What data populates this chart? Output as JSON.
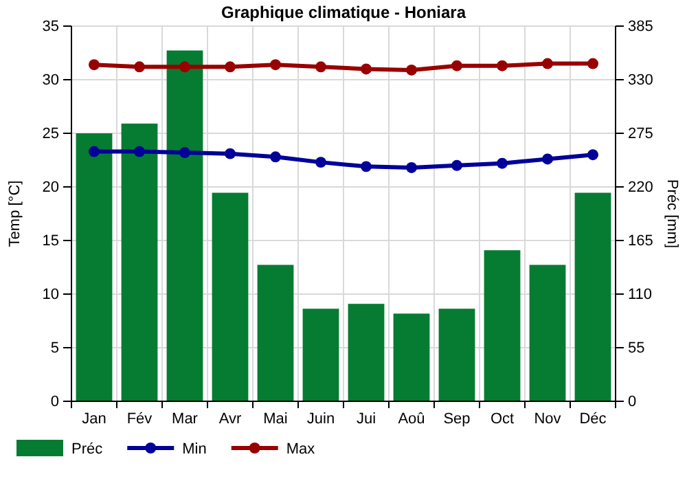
{
  "chart_data": {
    "type": "bar",
    "title": "Graphique climatique - Honiara",
    "ylabel": "Temp [°C]",
    "y2label": "Préc [mm]",
    "categories": [
      "Jan",
      "Fév",
      "Mar",
      "Avr",
      "Mai",
      "Juin",
      "Jui",
      "Aoû",
      "Sep",
      "Oct",
      "Nov",
      "Déc"
    ],
    "series": [
      {
        "name": "Préc",
        "axis": "y2",
        "color": "#067c32",
        "values": [
          275,
          285,
          360,
          214,
          140,
          95,
          100,
          90,
          95,
          155,
          140,
          214
        ]
      },
      {
        "name": "Min",
        "type": "line",
        "color": "#000099",
        "values": [
          23.3,
          23.3,
          23.2,
          23.1,
          22.8,
          22.3,
          21.9,
          21.8,
          22.0,
          22.2,
          22.6,
          23.0
        ]
      },
      {
        "name": "Max",
        "type": "line",
        "color": "#990000",
        "values": [
          31.4,
          31.2,
          31.2,
          31.2,
          31.4,
          31.2,
          31.0,
          30.9,
          31.3,
          31.3,
          31.5,
          31.5
        ]
      }
    ],
    "ylim": [
      0,
      35
    ],
    "yticks": [
      0,
      5,
      10,
      15,
      20,
      25,
      30,
      35
    ],
    "y2lim": [
      0,
      385
    ],
    "y2ticks": [
      0,
      55,
      110,
      165,
      220,
      275,
      330,
      385
    ],
    "grid": true,
    "legend": "bottom left",
    "marker": "circle"
  }
}
